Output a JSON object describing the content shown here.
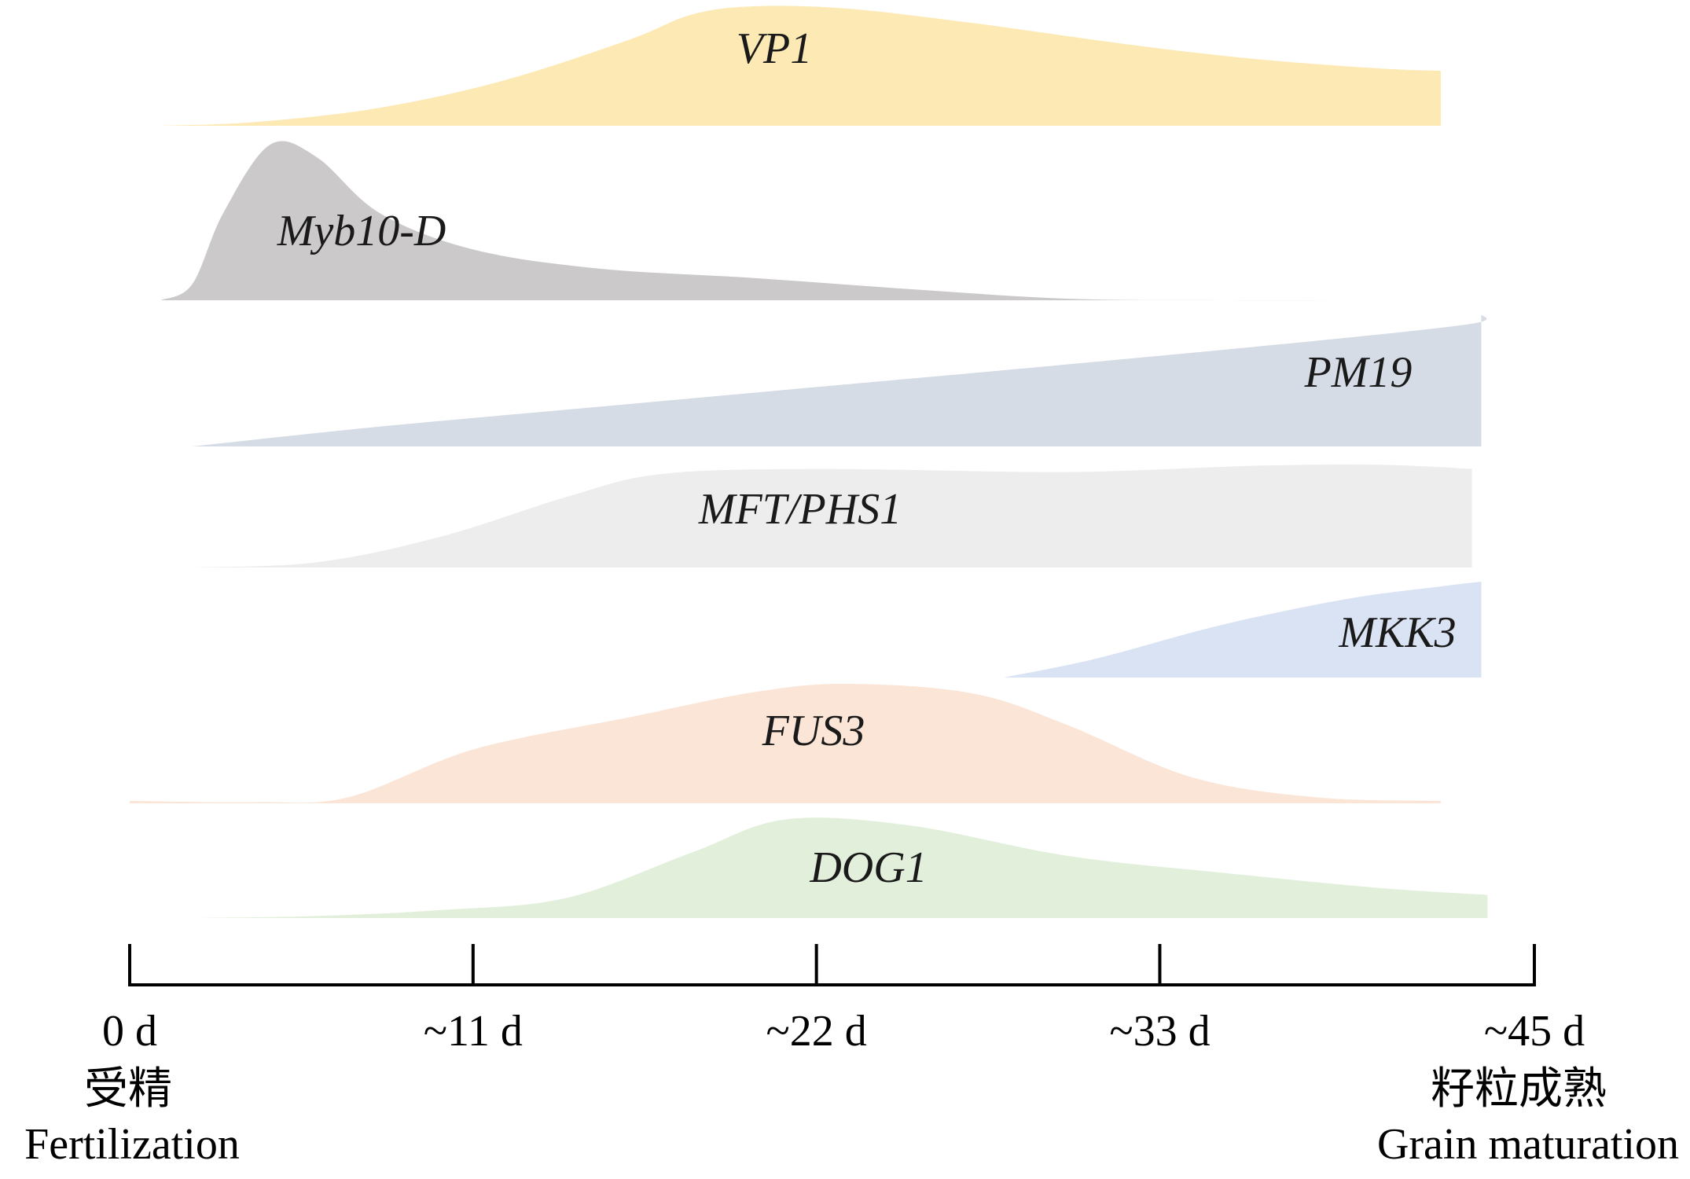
{
  "chart_data": {
    "type": "area",
    "x_axis": {
      "unit": "d",
      "ticks": [
        {
          "value": 0,
          "label": "0 d"
        },
        {
          "value": 11,
          "label": "~11 d"
        },
        {
          "value": 22,
          "label": "~22 d"
        },
        {
          "value": 33,
          "label": "~33 d"
        },
        {
          "value": 45,
          "label": "~45 d"
        }
      ],
      "range": [
        0,
        45
      ]
    },
    "stages": [
      {
        "at": 0,
        "label_cn": "受精",
        "label_en": "Fertilization"
      },
      {
        "at": 45,
        "label_cn": "籽粒成熟",
        "label_en": "Grain maturation"
      }
    ],
    "series": [
      {
        "name": "VP1",
        "color": "#fce9b4",
        "points": [
          [
            1,
            0
          ],
          [
            4,
            0.03
          ],
          [
            8,
            0.15
          ],
          [
            12,
            0.38
          ],
          [
            16,
            0.72
          ],
          [
            18,
            0.93
          ],
          [
            20,
            1.0
          ],
          [
            23,
            0.98
          ],
          [
            27,
            0.86
          ],
          [
            32,
            0.68
          ],
          [
            36,
            0.56
          ],
          [
            40,
            0.48
          ],
          [
            42,
            0.46
          ]
        ]
      },
      {
        "name": "Myb10-D",
        "color": "#cbc9ca",
        "points": [
          [
            1,
            0
          ],
          [
            2,
            0.1
          ],
          [
            3,
            0.55
          ],
          [
            4.5,
            0.98
          ],
          [
            6,
            0.9
          ],
          [
            8,
            0.55
          ],
          [
            11,
            0.32
          ],
          [
            15,
            0.2
          ],
          [
            20,
            0.14
          ],
          [
            25,
            0.07
          ],
          [
            30,
            0.01
          ],
          [
            35,
            0
          ],
          [
            40,
            0
          ],
          [
            45,
            0
          ]
        ]
      },
      {
        "name": "PM19",
        "color": "#d6dce5",
        "points": [
          [
            2,
            0
          ],
          [
            8,
            0.15
          ],
          [
            15,
            0.3
          ],
          [
            22,
            0.45
          ],
          [
            30,
            0.62
          ],
          [
            38,
            0.8
          ],
          [
            43,
            0.93
          ],
          [
            43.3,
            1.0
          ]
        ]
      },
      {
        "name": "MFT/PHS1",
        "color": "#ededed",
        "points": [
          [
            2,
            0
          ],
          [
            6,
            0.05
          ],
          [
            10,
            0.3
          ],
          [
            14,
            0.68
          ],
          [
            17,
            0.9
          ],
          [
            22,
            0.95
          ],
          [
            30,
            0.92
          ],
          [
            36,
            0.98
          ],
          [
            40,
            0.99
          ],
          [
            43,
            0.95
          ]
        ]
      },
      {
        "name": "MKK3",
        "color": "#dae3f3",
        "points": [
          [
            28,
            0
          ],
          [
            31,
            0.2
          ],
          [
            35,
            0.55
          ],
          [
            39,
            0.82
          ],
          [
            42,
            0.95
          ],
          [
            43.3,
            1.0
          ]
        ]
      },
      {
        "name": "FUS3",
        "color": "#fbe5d6",
        "points": [
          [
            0,
            0.02
          ],
          [
            4,
            0.01
          ],
          [
            7,
            0.05
          ],
          [
            11,
            0.45
          ],
          [
            16,
            0.72
          ],
          [
            20,
            0.93
          ],
          [
            23,
            1.0
          ],
          [
            27,
            0.92
          ],
          [
            30,
            0.66
          ],
          [
            34,
            0.22
          ],
          [
            38,
            0.05
          ],
          [
            42,
            0.02
          ]
        ]
      },
      {
        "name": "DOG1",
        "color": "#e2efda",
        "points": [
          [
            2,
            0
          ],
          [
            6,
            0.02
          ],
          [
            10,
            0.08
          ],
          [
            14,
            0.2
          ],
          [
            18,
            0.65
          ],
          [
            21,
            0.98
          ],
          [
            25,
            0.92
          ],
          [
            30,
            0.62
          ],
          [
            35,
            0.45
          ],
          [
            40,
            0.3
          ],
          [
            43.5,
            0.23
          ]
        ]
      }
    ]
  }
}
